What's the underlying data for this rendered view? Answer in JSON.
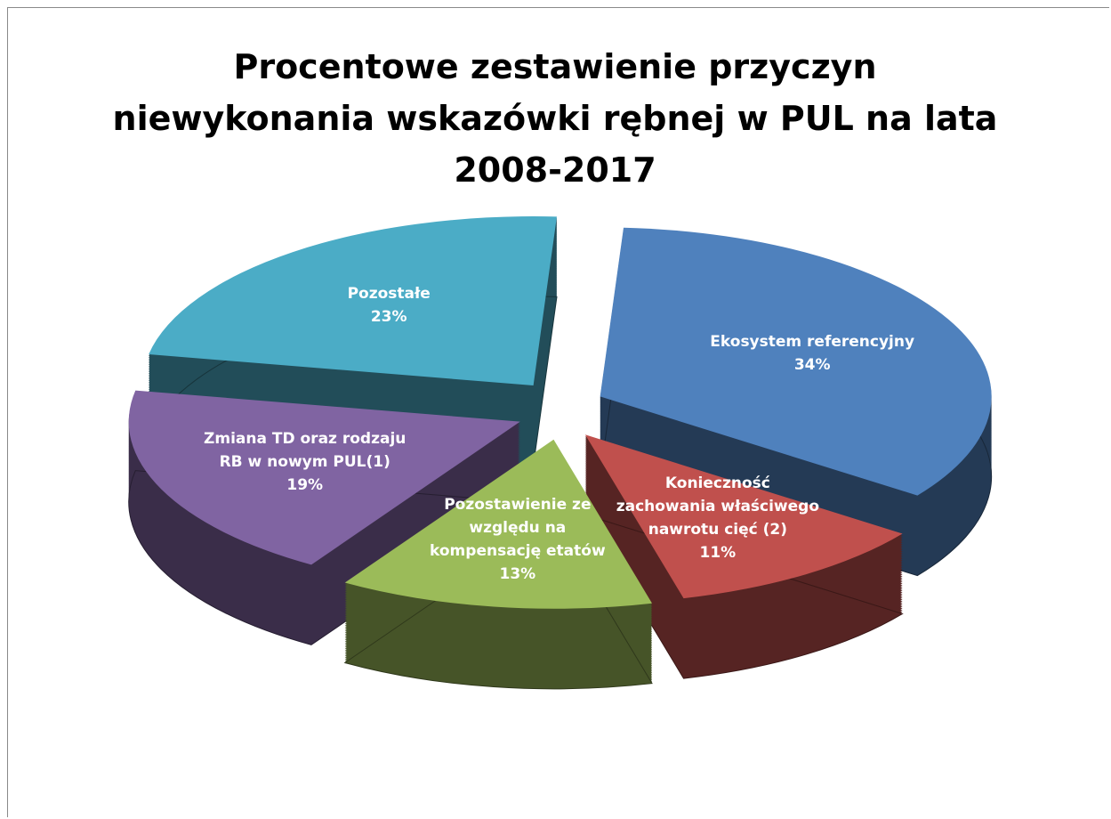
{
  "chart_data": {
    "type": "pie3d",
    "title": "Procentowe zestawienie przyczyn niewykonania wskazówki rębnej w PUL na lata 2008-2017",
    "categories": [
      "Ekosystem referencyjny",
      "Konieczność zachowania właściwego nawrotu cięć (2)",
      "Pozostawienie ze względu na kompensację etatów",
      "Zmiana TD oraz rodzaju RB w nowym PUL(1)",
      "Pozostałe"
    ],
    "values": [
      34,
      11,
      13,
      19,
      23
    ],
    "value_labels": [
      "34%",
      "11%",
      "13%",
      "19%",
      "23%"
    ],
    "colors": [
      "#4f81bd",
      "#c0504d",
      "#9bbb59",
      "#8064a2",
      "#4bacc6"
    ]
  }
}
